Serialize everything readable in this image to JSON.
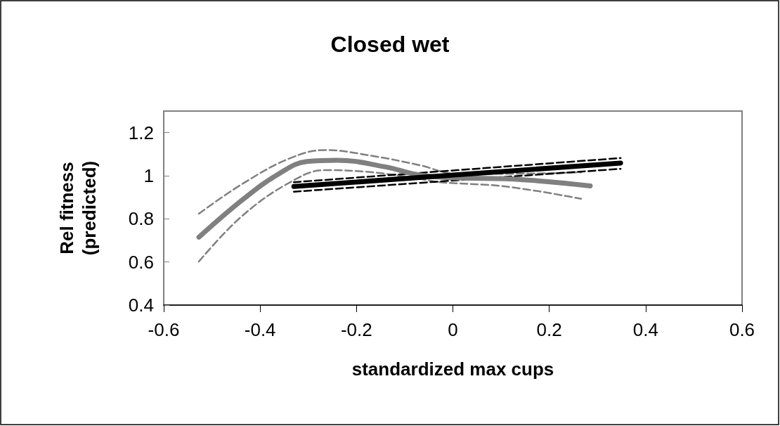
{
  "chart_data": {
    "type": "line",
    "title": "Closed wet",
    "xlabel": "standardized max cups",
    "ylabel": "Rel fitness (predicted)",
    "xlim": [
      -0.6,
      0.6
    ],
    "xticks": [
      -0.6,
      -0.4,
      -0.2,
      0,
      0.2,
      0.4,
      0.6
    ],
    "ylim": [
      0.4,
      1.3
    ],
    "yticks": [
      0.4,
      0.6,
      0.8,
      1,
      1.2
    ],
    "grid": false,
    "marker": "none",
    "series": [
      {
        "color": "#808080",
        "line_style": "dashed",
        "x": [
          -0.527,
          -0.434,
          -0.337,
          -0.265,
          -0.167,
          -0.069,
          0.008,
          0.11,
          0.266
        ],
        "values": [
          0.824,
          0.966,
          1.082,
          1.119,
          1.092,
          1.049,
          1.009,
          1.009,
          1.016
        ]
      },
      {
        "color": "#808080",
        "line_style": "dashed",
        "x": [
          -0.527,
          -0.434,
          -0.327,
          -0.265,
          -0.167,
          -0.069,
          -0.026,
          0.11,
          0.266
        ],
        "values": [
          0.602,
          0.82,
          0.983,
          1.026,
          1.016,
          0.986,
          0.97,
          0.95,
          0.893
        ]
      },
      {
        "color": "#808080",
        "line_style": "solid",
        "x": [
          -0.527,
          -0.434,
          -0.361,
          -0.303,
          -0.24,
          -0.142,
          -0.069,
          0.008,
          0.11,
          0.285
        ],
        "values": [
          0.715,
          0.893,
          1.009,
          1.066,
          1.072,
          1.042,
          1.003,
          0.99,
          0.986,
          0.953
        ]
      },
      {
        "color": "#000000",
        "line_style": "dashed",
        "x": [
          -0.33,
          0.348
        ],
        "values": [
          0.97,
          1.082
        ]
      },
      {
        "color": "#000000",
        "line_style": "dashed",
        "x": [
          -0.33,
          0.348
        ],
        "values": [
          0.926,
          1.032
        ]
      },
      {
        "color": "#000000",
        "line_style": "solid",
        "x": [
          -0.33,
          0.348
        ],
        "values": [
          0.95,
          1.059
        ]
      }
    ]
  }
}
